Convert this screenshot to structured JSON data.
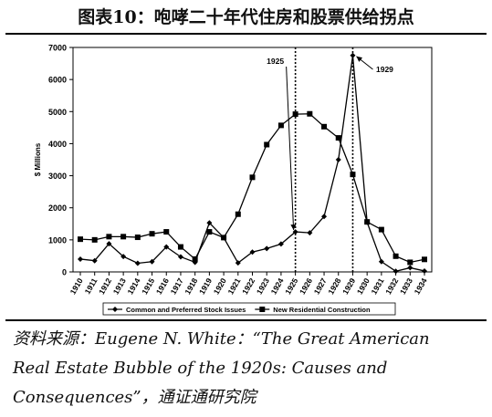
{
  "title": "图表10：咆哮二十年代住房和股票供给拐点",
  "source_lines": [
    "资料来源：Eugene N. White：“The Great American",
    "Real Estate Bubble of the 1920s: Causes and",
    "Consequences”，通证通研究院"
  ],
  "chart_data": {
    "type": "line",
    "ylabel": "$ Millions",
    "xlabel": "",
    "ylim": [
      0,
      7000
    ],
    "yticks": [
      "0",
      "1000",
      "2000",
      "3000",
      "4000",
      "5000",
      "6000",
      "7000"
    ],
    "x": [
      "1910",
      "1911",
      "1912",
      "1913",
      "1914",
      "1915",
      "1916",
      "1917",
      "1918",
      "1919",
      "1920",
      "1921",
      "1922",
      "1923",
      "1924",
      "1925",
      "1926",
      "1927",
      "1928",
      "1929",
      "1930",
      "1931",
      "1932",
      "1933",
      "1934"
    ],
    "grid": false,
    "legend_position": "bottom",
    "series": [
      {
        "name": "Common and Preferred Stock Issues",
        "marker": "diamond",
        "color": "#000000",
        "values": [
          400,
          350,
          880,
          480,
          270,
          320,
          780,
          470,
          300,
          1530,
          1070,
          280,
          620,
          730,
          870,
          1250,
          1220,
          1730,
          3500,
          6750,
          1550,
          320,
          20,
          130,
          30
        ]
      },
      {
        "name": "New Residential Construction",
        "marker": "square",
        "color": "#000000",
        "values": [
          1020,
          1000,
          1100,
          1100,
          1080,
          1190,
          1250,
          780,
          400,
          1250,
          1070,
          1800,
          2950,
          3970,
          4570,
          4920,
          4930,
          4530,
          4180,
          3040,
          1560,
          1320,
          490,
          300,
          390
        ]
      }
    ],
    "annotations": [
      {
        "text": "1925",
        "x": "1925"
      },
      {
        "text": "1929",
        "x": "1929"
      }
    ]
  }
}
